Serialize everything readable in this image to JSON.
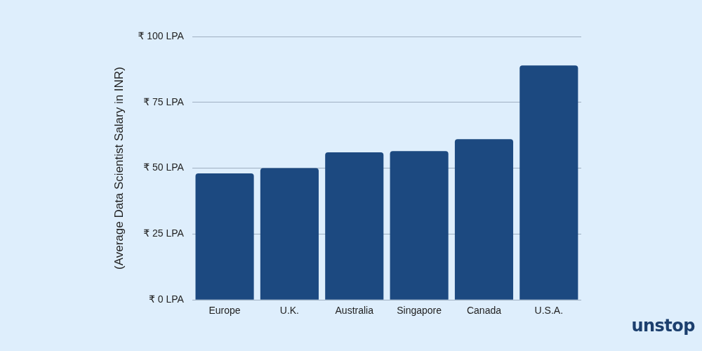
{
  "chart_data": {
    "type": "bar",
    "y_label": "(Average Data Scientist Salary in INR)",
    "categories": [
      "Europe",
      "U.K.",
      "Australia",
      "Singapore",
      "Canada",
      "U.S.A."
    ],
    "values": [
      48,
      50,
      56,
      56.5,
      61,
      89
    ],
    "color": "#1c4980",
    "ylim": [
      0,
      100
    ],
    "yticks": [
      {
        "value": 0,
        "label": "₹ 0 LPA"
      },
      {
        "value": 25,
        "label": "₹ 25 LPA"
      },
      {
        "value": 50,
        "label": "₹ 50 LPA"
      },
      {
        "value": 75,
        "label": "₹ 75 LPA"
      },
      {
        "value": 100,
        "label": "₹ 100 LPA"
      }
    ],
    "grid": true
  },
  "logo": "unstop"
}
